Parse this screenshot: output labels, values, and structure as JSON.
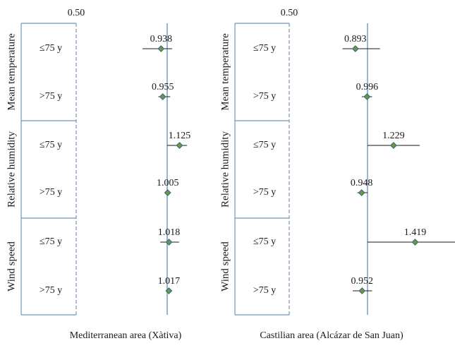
{
  "chart_data": [
    {
      "type": "forest",
      "title": "Mediterranean area (Xàtiva)",
      "reference_tick_label": "0.50",
      "reference_value": 1.0,
      "xlim": [
        0.5,
        1.45
      ],
      "groups": [
        {
          "label": "Mean temperature",
          "rows": [
            {
              "label": "≤75 y",
              "estimate": 0.938,
              "estimate_label": "0.938",
              "ci": [
                0.75,
                1.05
              ]
            },
            {
              "label": ">75 y",
              "estimate": 0.955,
              "estimate_label": "0.955",
              "ci": [
                0.91,
                1.03
              ]
            }
          ]
        },
        {
          "label": "Relative humidity",
          "rows": [
            {
              "label": "≤75 y",
              "estimate": 1.125,
              "estimate_label": "1.125",
              "ci": [
                1.0,
                1.2
              ]
            },
            {
              "label": ">75 y",
              "estimate": 1.005,
              "estimate_label": "1.005",
              "ci": [
                0.98,
                1.03
              ]
            }
          ]
        },
        {
          "label": "Wind speed",
          "rows": [
            {
              "label": "≤75 y",
              "estimate": 1.018,
              "estimate_label": "1.018",
              "ci": [
                0.93,
                1.12
              ]
            },
            {
              "label": ">75 y",
              "estimate": 1.017,
              "estimate_label": "1.017",
              "ci": [
                0.985,
                1.04
              ]
            }
          ]
        }
      ]
    },
    {
      "type": "forest",
      "title": "Castilian area (Alcázar de San Juan)",
      "reference_tick_label": "0.50",
      "reference_value": 1.0,
      "xlim": [
        0.5,
        1.56
      ],
      "groups": [
        {
          "label": "Mean temperature",
          "rows": [
            {
              "label": "≤75 y",
              "estimate": 0.893,
              "estimate_label": "0.893",
              "ci": [
                0.78,
                1.11
              ]
            },
            {
              "label": ">75 y",
              "estimate": 0.996,
              "estimate_label": "0.996",
              "ci": [
                0.95,
                1.04
              ]
            }
          ]
        },
        {
          "label": "Relative humidity",
          "rows": [
            {
              "label": "≤75 y",
              "estimate": 1.229,
              "estimate_label": "1.229",
              "ci": [
                1.0,
                1.46
              ]
            },
            {
              "label": ">75 y",
              "estimate": 0.948,
              "estimate_label": "0.948",
              "ci": [
                0.91,
                1.0
              ]
            }
          ]
        },
        {
          "label": "Wind speed",
          "rows": [
            {
              "label": "≤75 y",
              "estimate": 1.419,
              "estimate_label": "1.419",
              "ci": [
                1.0,
                1.78
              ]
            },
            {
              "label": ">75 y",
              "estimate": 0.952,
              "estimate_label": "0.952",
              "ci": [
                0.87,
                1.04
              ]
            }
          ]
        }
      ]
    }
  ],
  "colors": {
    "axis": "#6f96bd",
    "whisker": "#1a1a1a",
    "marker_fill": "#6a9a3a",
    "marker_stroke": "#2f5f8f",
    "text": "#1a1a1a"
  }
}
